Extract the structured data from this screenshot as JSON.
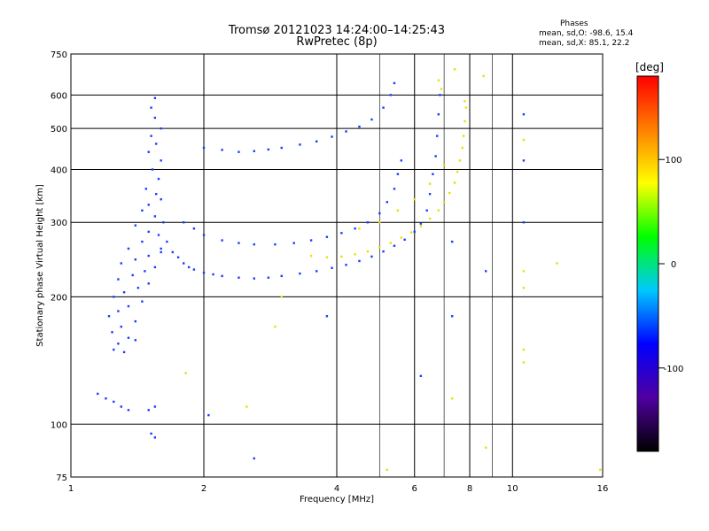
{
  "chart_data": {
    "type": "scatter",
    "title": "Tromsø 20121023 14:24:00–14:25:43",
    "subtitle": "RwPretec (8p)",
    "xlabel": "Frequency [MHz]",
    "ylabel": "Stationary phase Virtual Height [km]",
    "xscale": "log",
    "yscale": "log",
    "xlim": [
      1,
      16
    ],
    "ylim": [
      75,
      750
    ],
    "xticks": [
      1,
      2,
      4,
      6,
      8,
      10,
      16
    ],
    "yticks": [
      75,
      100,
      200,
      300,
      400,
      500,
      600,
      750
    ],
    "grid": true,
    "stats": {
      "header": "Phases",
      "o_mode": "mean, sd,O: -98.6, 15.4",
      "x_mode": "mean, sd,X:  85.1, 22.2"
    },
    "colorbar": {
      "unit": "[deg]",
      "range": [
        -180,
        180
      ],
      "ticks": [
        100,
        0,
        -100
      ],
      "colors": [
        "#000000",
        "#5000a0",
        "#0000ff",
        "#00c8ff",
        "#00ff00",
        "#ffff00",
        "#ff8000",
        "#ff0000"
      ]
    },
    "series": [
      {
        "name": "O",
        "phase_mean": -98.6,
        "color": "#1a3cff",
        "points": [
          [
            1.55,
            590
          ],
          [
            1.52,
            560
          ],
          [
            1.55,
            530
          ],
          [
            1.6,
            500
          ],
          [
            1.52,
            480
          ],
          [
            1.56,
            460
          ],
          [
            1.5,
            440
          ],
          [
            1.6,
            420
          ],
          [
            1.53,
            400
          ],
          [
            1.58,
            380
          ],
          [
            1.48,
            360
          ],
          [
            1.56,
            350
          ],
          [
            1.6,
            340
          ],
          [
            1.5,
            330
          ],
          [
            1.45,
            320
          ],
          [
            1.55,
            310
          ],
          [
            1.62,
            300
          ],
          [
            1.4,
            295
          ],
          [
            1.5,
            285
          ],
          [
            1.58,
            280
          ],
          [
            1.45,
            270
          ],
          [
            1.35,
            260
          ],
          [
            1.6,
            255
          ],
          [
            1.5,
            250
          ],
          [
            1.4,
            245
          ],
          [
            1.3,
            240
          ],
          [
            1.55,
            235
          ],
          [
            1.47,
            230
          ],
          [
            1.38,
            225
          ],
          [
            1.28,
            220
          ],
          [
            1.5,
            215
          ],
          [
            1.42,
            210
          ],
          [
            1.32,
            205
          ],
          [
            1.25,
            200
          ],
          [
            1.45,
            195
          ],
          [
            1.35,
            190
          ],
          [
            1.28,
            185
          ],
          [
            1.22,
            180
          ],
          [
            1.4,
            175
          ],
          [
            1.3,
            170
          ],
          [
            1.24,
            165
          ],
          [
            1.35,
            160
          ],
          [
            1.28,
            155
          ],
          [
            1.25,
            150
          ],
          [
            1.32,
            148
          ],
          [
            1.4,
            158
          ],
          [
            1.6,
            260
          ],
          [
            1.65,
            270
          ],
          [
            1.7,
            255
          ],
          [
            1.75,
            248
          ],
          [
            1.8,
            240
          ],
          [
            1.85,
            235
          ],
          [
            1.9,
            232
          ],
          [
            2.0,
            228
          ],
          [
            2.1,
            226
          ],
          [
            2.2,
            224
          ],
          [
            2.4,
            222
          ],
          [
            2.6,
            221
          ],
          [
            2.8,
            222
          ],
          [
            3.0,
            224
          ],
          [
            3.3,
            227
          ],
          [
            3.6,
            230
          ],
          [
            3.9,
            234
          ],
          [
            4.2,
            238
          ],
          [
            4.5,
            243
          ],
          [
            4.8,
            249
          ],
          [
            5.1,
            256
          ],
          [
            5.4,
            264
          ],
          [
            5.7,
            273
          ],
          [
            6.0,
            285
          ],
          [
            6.2,
            298
          ],
          [
            6.4,
            320
          ],
          [
            6.5,
            350
          ],
          [
            6.6,
            390
          ],
          [
            6.7,
            430
          ],
          [
            6.75,
            480
          ],
          [
            6.8,
            540
          ],
          [
            6.85,
            600
          ],
          [
            2.0,
            450
          ],
          [
            2.2,
            445
          ],
          [
            2.4,
            440
          ],
          [
            2.6,
            442
          ],
          [
            2.8,
            446
          ],
          [
            3.0,
            450
          ],
          [
            3.3,
            458
          ],
          [
            3.6,
            466
          ],
          [
            3.9,
            478
          ],
          [
            4.2,
            492
          ],
          [
            4.5,
            505
          ],
          [
            4.8,
            525
          ],
          [
            5.1,
            560
          ],
          [
            5.3,
            600
          ],
          [
            1.8,
            300
          ],
          [
            1.9,
            290
          ],
          [
            2.0,
            280
          ],
          [
            2.2,
            272
          ],
          [
            2.4,
            268
          ],
          [
            2.6,
            266
          ],
          [
            2.9,
            266
          ],
          [
            3.2,
            268
          ],
          [
            3.5,
            272
          ],
          [
            3.8,
            277
          ],
          [
            4.1,
            283
          ],
          [
            4.4,
            290
          ],
          [
            4.7,
            300
          ],
          [
            5.0,
            315
          ],
          [
            5.2,
            335
          ],
          [
            5.4,
            360
          ],
          [
            5.5,
            390
          ],
          [
            5.6,
            420
          ],
          [
            1.15,
            118
          ],
          [
            1.2,
            115
          ],
          [
            1.25,
            113
          ],
          [
            1.3,
            110
          ],
          [
            1.35,
            108
          ],
          [
            1.5,
            108
          ],
          [
            1.55,
            110
          ],
          [
            1.52,
            95
          ],
          [
            1.55,
            93
          ],
          [
            2.05,
            105
          ],
          [
            10.6,
            300
          ],
          [
            10.6,
            420
          ],
          [
            10.6,
            540
          ],
          [
            7.3,
            180
          ],
          [
            7.3,
            270
          ],
          [
            3.8,
            180
          ],
          [
            5.4,
            640
          ],
          [
            6.2,
            130
          ],
          [
            2.6,
            83
          ],
          [
            8.7,
            230
          ]
        ]
      },
      {
        "name": "X",
        "phase_mean": 85.1,
        "color": "#e8e000",
        "points": [
          [
            3.5,
            250
          ],
          [
            3.8,
            248
          ],
          [
            4.1,
            249
          ],
          [
            4.4,
            252
          ],
          [
            4.7,
            256
          ],
          [
            5.0,
            262
          ],
          [
            5.3,
            268
          ],
          [
            5.6,
            276
          ],
          [
            5.9,
            284
          ],
          [
            6.2,
            294
          ],
          [
            6.5,
            306
          ],
          [
            6.8,
            320
          ],
          [
            7.0,
            335
          ],
          [
            7.2,
            352
          ],
          [
            7.4,
            372
          ],
          [
            7.5,
            395
          ],
          [
            7.6,
            420
          ],
          [
            7.7,
            450
          ],
          [
            7.75,
            480
          ],
          [
            7.8,
            520
          ],
          [
            7.85,
            560
          ],
          [
            7.8,
            580
          ],
          [
            4.5,
            290
          ],
          [
            5.0,
            300
          ],
          [
            5.5,
            320
          ],
          [
            6.0,
            340
          ],
          [
            6.5,
            370
          ],
          [
            7.0,
            410
          ],
          [
            6.8,
            650
          ],
          [
            6.9,
            620
          ],
          [
            7.4,
            690
          ],
          [
            8.6,
            665
          ],
          [
            10.6,
            470
          ],
          [
            10.6,
            230
          ],
          [
            10.6,
            210
          ],
          [
            10.6,
            150
          ],
          [
            10.6,
            140
          ],
          [
            7.3,
            115
          ],
          [
            12.6,
            240
          ],
          [
            5.2,
            78
          ],
          [
            8.7,
            88
          ],
          [
            1.82,
            132
          ],
          [
            2.5,
            110
          ],
          [
            2.9,
            170
          ],
          [
            3.0,
            200
          ],
          [
            15.8,
            78
          ]
        ]
      }
    ]
  }
}
